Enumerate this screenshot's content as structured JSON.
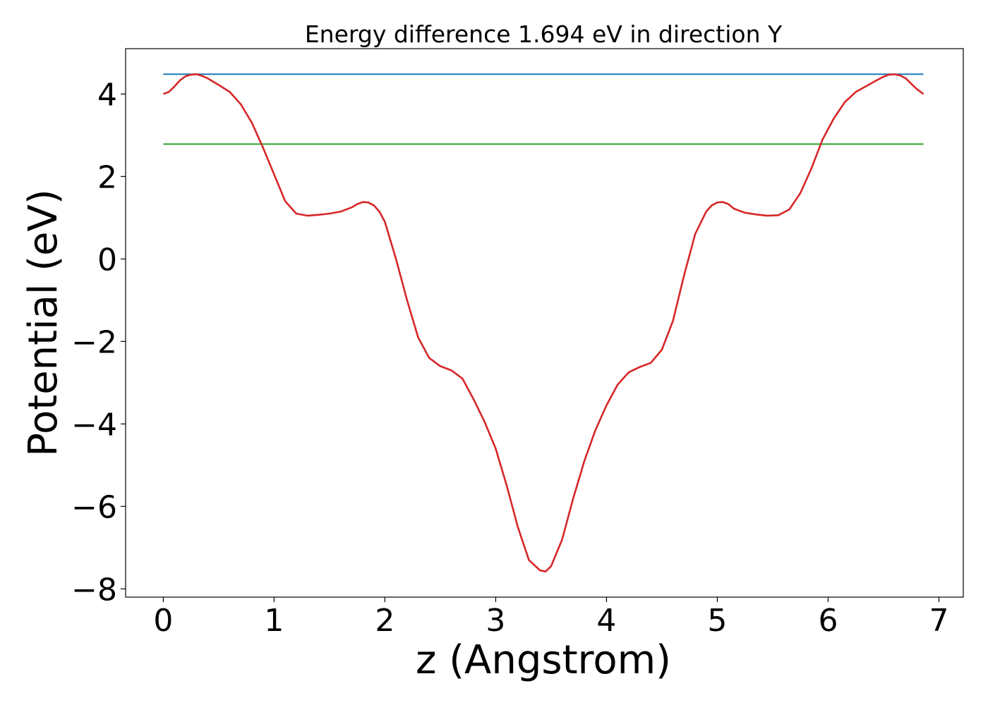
{
  "chart_data": {
    "type": "line",
    "title": "Energy difference 1.694 eV in direction Y",
    "xlabel": "z (Angstrom)",
    "ylabel": "Potential (eV)",
    "xlim": [
      -0.34,
      7.22
    ],
    "ylim": [
      -8.2,
      5.1
    ],
    "xticks": [
      0,
      1,
      2,
      3,
      4,
      5,
      6,
      7
    ],
    "yticks": [
      -8,
      -6,
      -4,
      -2,
      0,
      2,
      4
    ],
    "xtick_labels": [
      "0",
      "1",
      "2",
      "3",
      "4",
      "5",
      "6",
      "7"
    ],
    "ytick_labels": [
      "−8",
      "−6",
      "−4",
      "−2",
      "0",
      "2",
      "4"
    ],
    "grid": false,
    "series": [
      {
        "color": "#d62728",
        "x": [
          0.0,
          0.05,
          0.1,
          0.15,
          0.2,
          0.25,
          0.3,
          0.35,
          0.4,
          0.5,
          0.6,
          0.7,
          0.8,
          0.9,
          1.0,
          1.1,
          1.2,
          1.3,
          1.4,
          1.5,
          1.6,
          1.7,
          1.75,
          1.8,
          1.85,
          1.9,
          1.95,
          2.0,
          2.1,
          2.2,
          2.3,
          2.4,
          2.5,
          2.6,
          2.7,
          2.8,
          2.9,
          3.0,
          3.1,
          3.2,
          3.3,
          3.4,
          3.45,
          3.5,
          3.6,
          3.7,
          3.8,
          3.9,
          4.0,
          4.1,
          4.2,
          4.3,
          4.4,
          4.5,
          4.6,
          4.7,
          4.8,
          4.9,
          4.95,
          5.0,
          5.05,
          5.1,
          5.15,
          5.25,
          5.35,
          5.45,
          5.55,
          5.65,
          5.75,
          5.85,
          5.95,
          6.05,
          6.15,
          6.25,
          6.35,
          6.45,
          6.5,
          6.55,
          6.6,
          6.65,
          6.7,
          6.75,
          6.8,
          6.86
        ],
        "y": [
          4.0,
          4.05,
          4.18,
          4.33,
          4.43,
          4.47,
          4.48,
          4.44,
          4.38,
          4.22,
          4.05,
          3.75,
          3.3,
          2.7,
          2.05,
          1.4,
          1.1,
          1.05,
          1.07,
          1.1,
          1.15,
          1.25,
          1.33,
          1.38,
          1.37,
          1.3,
          1.15,
          0.9,
          0.0,
          -1.0,
          -1.9,
          -2.4,
          -2.6,
          -2.7,
          -2.9,
          -3.4,
          -3.95,
          -4.6,
          -5.5,
          -6.5,
          -7.3,
          -7.55,
          -7.58,
          -7.45,
          -6.8,
          -5.8,
          -4.9,
          -4.15,
          -3.55,
          -3.05,
          -2.75,
          -2.62,
          -2.52,
          -2.2,
          -1.5,
          -0.4,
          0.6,
          1.15,
          1.3,
          1.37,
          1.38,
          1.33,
          1.22,
          1.12,
          1.08,
          1.05,
          1.06,
          1.2,
          1.6,
          2.2,
          2.9,
          3.4,
          3.8,
          4.05,
          4.2,
          4.35,
          4.42,
          4.47,
          4.48,
          4.45,
          4.38,
          4.25,
          4.12,
          4.0
        ]
      },
      {
        "color": "#1f77b4",
        "x": [
          0.0,
          6.86
        ],
        "y": [
          4.48,
          4.48
        ]
      },
      {
        "color": "#2ca02c",
        "x": [
          0.0,
          6.86
        ],
        "y": [
          2.786,
          2.786
        ]
      }
    ]
  }
}
